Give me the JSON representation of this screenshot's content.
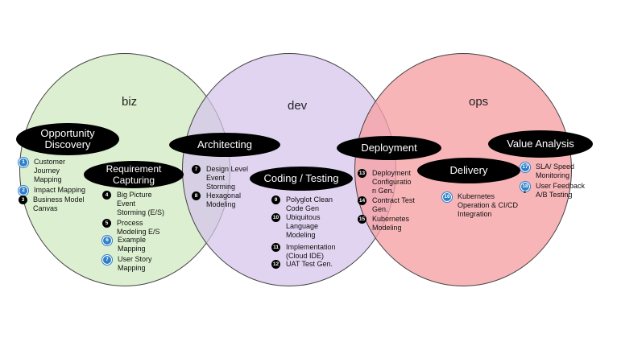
{
  "circles": {
    "biz": "biz",
    "dev": "dev",
    "ops": "ops"
  },
  "phases": {
    "opportunity_discovery": "Opportunity\nDiscovery",
    "requirement_capturing": "Requirement\nCapturing",
    "architecting": "Architecting",
    "coding_testing": "Coding / Testing",
    "deployment": "Deployment",
    "delivery": "Delivery",
    "value_analysis": "Value Analysis"
  },
  "items": {
    "customer_journey": {
      "num": "1",
      "label": "Customer\nJourney\nMapping"
    },
    "impact_mapping": {
      "num": "2",
      "label": "Impact Mapping"
    },
    "business_model": {
      "num": "3",
      "label": "Business  Model\nCanvas"
    },
    "big_picture": {
      "num": "4",
      "label": "Big Picture\nEvent\nStorming (E/S)"
    },
    "process_modeling": {
      "num": "5",
      "label": "Process\nModeling E/S"
    },
    "example_mapping": {
      "num": "6",
      "label": "Example\nMapping"
    },
    "user_story": {
      "num": "7",
      "label": "User Story\nMapping"
    },
    "design_level": {
      "num": "7",
      "label": "Design Level\nEvent\nStorming"
    },
    "hexagonal": {
      "num": "8",
      "label": "Hexagonal\nModeling"
    },
    "polyglot": {
      "num": "9",
      "label": "Polyglot Clean\nCode Gen"
    },
    "ubiquitous": {
      "num": "10",
      "label": "Ubiquitous\nLanguage\nModeling"
    },
    "implementation": {
      "num": "11",
      "label": "Implementation\n(Cloud IDE)"
    },
    "uat": {
      "num": "12",
      "label": "UAT Test Gen."
    },
    "deploy_config": {
      "num": "13",
      "label": "Deployment\nConfiguratio\nn Gen."
    },
    "contract_test": {
      "num": "14",
      "label": "Contract Test\nGen."
    },
    "kube_modeling": {
      "num": "15",
      "label": "Kubernetes\nModeling"
    },
    "kube_ops": {
      "num": "16",
      "label": "Kubernetes\nOperation & CI/CD\nIntegration"
    },
    "sla": {
      "num": "17",
      "label": "SLA/ Speed\nMonitoring"
    },
    "user_feedback": {
      "num": "18",
      "label": "User Feedback\nA/B Testing"
    }
  },
  "colors": {
    "biz": "#d6ecc8",
    "dev": "#d6c4ec",
    "ops": "#f6a0a4",
    "pill": "#000000",
    "blue_badge": "#2f7fc9"
  }
}
